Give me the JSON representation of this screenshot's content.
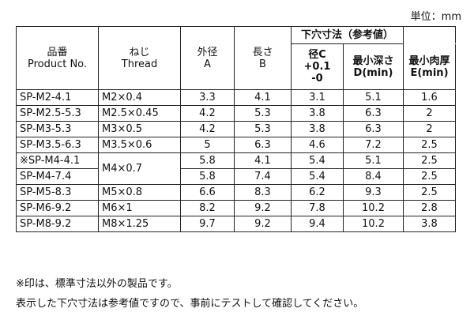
{
  "unit_label": "単位：mm",
  "headers": {
    "product": {
      "ja": "品番",
      "en": "Product No."
    },
    "thread": {
      "ja": "ねじ",
      "en": "Thread"
    },
    "outer": {
      "ja": "外径",
      "en": "A"
    },
    "length": {
      "ja": "長さ",
      "en": "B"
    },
    "hole_group": "下穴寸法（参考値）",
    "diameter": {
      "line1": "径C",
      "line2": "+0.1",
      "line3": "-0"
    },
    "min_depth": {
      "ja": "最小深さ",
      "en": "D(min)"
    },
    "min_wall": {
      "ja": "最小肉厚",
      "en": "E(min)"
    }
  },
  "rows": [
    {
      "product": "SP-M2-4.1",
      "thread": "M2×0.4",
      "a": "3.3",
      "b": "4.1",
      "c": "3.1",
      "d": "5.1",
      "e": "1.6"
    },
    {
      "product": "SP-M2.5-5.3",
      "thread": "M2.5×0.45",
      "a": "4.2",
      "b": "5.3",
      "c": "3.8",
      "d": "6.3",
      "e": "2"
    },
    {
      "product": "SP-M3-5.3",
      "thread": "M3×0.5",
      "a": "4.2",
      "b": "5.3",
      "c": "3.8",
      "d": "6.3",
      "e": "2"
    },
    {
      "product": "SP-M3.5-6.3",
      "thread": "M3.5×0.6",
      "a": "5",
      "b": "6.3",
      "c": "4.6",
      "d": "7.2",
      "e": "2.5"
    },
    {
      "product": "※SP-M4-4.1",
      "thread": "M4×0.7",
      "a": "5.8",
      "b": "4.1",
      "c": "5.4",
      "d": "5.1",
      "e": "2.5"
    },
    {
      "product": "SP-M4-7.4",
      "a": "5.8",
      "b": "7.4",
      "c": "5.4",
      "d": "8.4",
      "e": "2.5"
    },
    {
      "product": "SP-M5-8.3",
      "thread": "M5×0.8",
      "a": "6.6",
      "b": "8.3",
      "c": "6.2",
      "d": "9.3",
      "e": "2.5"
    },
    {
      "product": "SP-M6-9.2",
      "thread": "M6×1",
      "a": "8.2",
      "b": "9.2",
      "c": "7.8",
      "d": "10.2",
      "e": "2.8"
    },
    {
      "product": "SP-M8-9.2",
      "thread": "M8×1.25",
      "a": "9.7",
      "b": "9.2",
      "c": "9.4",
      "d": "10.2",
      "e": "3.8"
    }
  ],
  "notes": [
    "※印は、標準寸法以外の製品です。",
    "表示した下穴寸法は参考値ですので、事前にテストして確認してください。"
  ]
}
